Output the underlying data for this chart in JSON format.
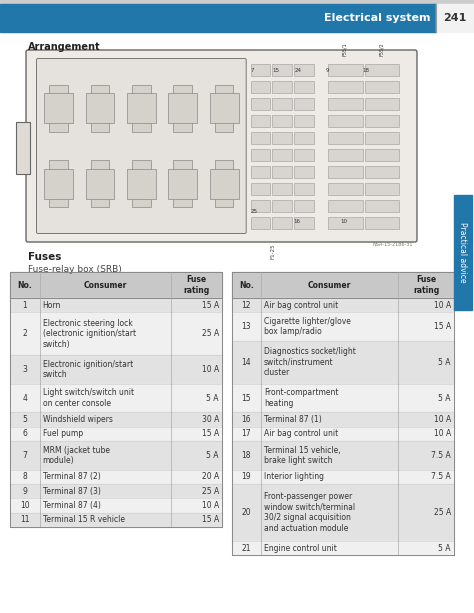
{
  "page_title": "Electrical system",
  "page_number": "241",
  "section_label": "Arrangement",
  "fuses_title": "Fuses",
  "fuses_subtitle": "Fuse-relay box (SRB)",
  "header_bg": "#2277aa",
  "header_text_color": "#ffffff",
  "page_num_color": "#222222",
  "side_tab_color": "#2277aa",
  "table_header_bg": "#c8c8c8",
  "table_row_alt_bg": "#e2e2e2",
  "table_row_bg": "#f0f0f0",
  "table_border_color": "#aaaaaa",
  "diagram_bg": "#eeebe6",
  "relay_fill": "#d5d2cc",
  "fuse_fill": "#d8d5d0",
  "left_table": {
    "headers": [
      "No.",
      "Consumer",
      "Fuse\nrating"
    ],
    "rows": [
      [
        "1",
        "Horn",
        "15 A"
      ],
      [
        "2",
        "Electronic steering lock\n(electronic ignition/start\nswitch)",
        "25 A"
      ],
      [
        "3",
        "Electronic ignition/start\nswitch",
        "10 A"
      ],
      [
        "4",
        "Light switch/switch unit\non center console",
        "5 A"
      ],
      [
        "5",
        "Windshield wipers",
        "30 A"
      ],
      [
        "6",
        "Fuel pump",
        "15 A"
      ],
      [
        "7",
        "MRM (jacket tube\nmodule)",
        "5 A"
      ],
      [
        "8",
        "Terminal 87 (2)",
        "20 A"
      ],
      [
        "9",
        "Terminal 87 (3)",
        "25 A"
      ],
      [
        "10",
        "Terminal 87 (4)",
        "10 A"
      ],
      [
        "11",
        "Terminal 15 R vehicle",
        "15 A"
      ]
    ]
  },
  "right_table": {
    "headers": [
      "No.",
      "Consumer",
      "Fuse\nrating"
    ],
    "rows": [
      [
        "12",
        "Air bag control unit",
        "10 A"
      ],
      [
        "13",
        "Cigarette lighter/glove\nbox lamp/radio",
        "15 A"
      ],
      [
        "14",
        "Diagnostics socket/light\nswitch/instrument\ncluster",
        "5 A"
      ],
      [
        "15",
        "Front-compartment\nheating",
        "5 A"
      ],
      [
        "16",
        "Terminal 87 (1)",
        "10 A"
      ],
      [
        "17",
        "Air bag control unit",
        "10 A"
      ],
      [
        "18",
        "Terminal 15 vehicle,\nbrake light switch",
        "7.5 A"
      ],
      [
        "19",
        "Interior lighting",
        "7.5 A"
      ],
      [
        "20",
        "Front-passenger power\nwindow switch/terminal\n30/2 signal acquisition\nand actuation module",
        "25 A"
      ],
      [
        "21",
        "Engine control unit",
        "5 A"
      ]
    ]
  },
  "practical_advice_text": "Practical advice",
  "diagram_note": "NSA-15-2186-31"
}
